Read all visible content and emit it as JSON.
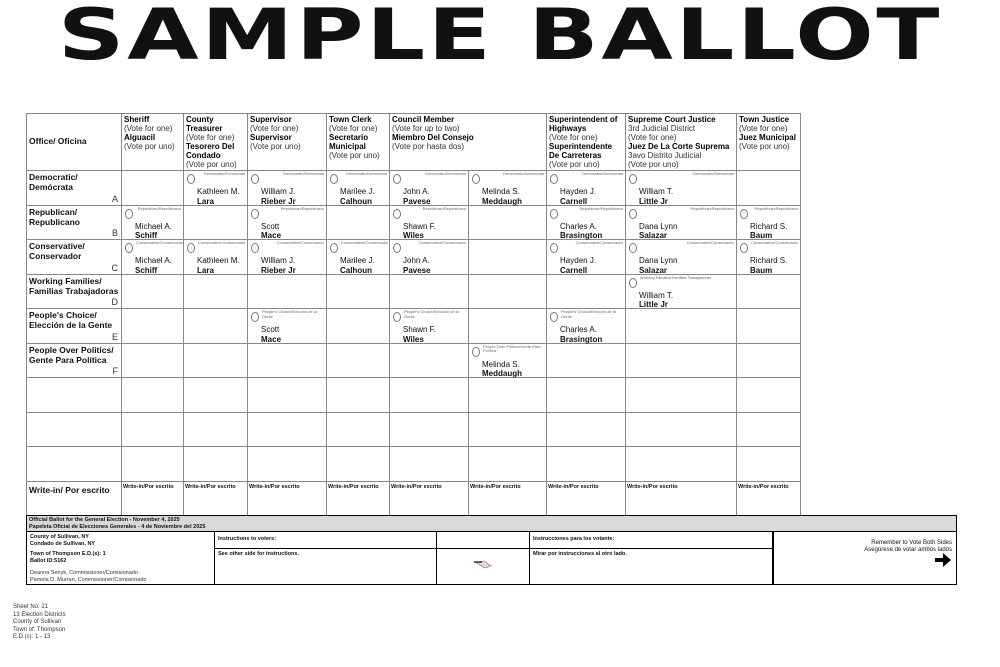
{
  "title": "SAMPLE BALLOT",
  "office_label": "Office/ Oficina",
  "contests": [
    {
      "span": 1,
      "lines": [
        {
          "t": "Sheriff",
          "b": 1
        },
        {
          "t": "(Vote for one)"
        },
        {
          "t": "Alguacil",
          "b": 1
        },
        {
          "t": "(Vote por uno)"
        }
      ]
    },
    {
      "span": 1,
      "lines": [
        {
          "t": "County Treasurer",
          "b": 1
        },
        {
          "t": "(Vote for one)"
        },
        {
          "t": "Tesorero Del Condado",
          "b": 1
        },
        {
          "t": "(Vote por uno)"
        }
      ]
    },
    {
      "span": 1,
      "lines": [
        {
          "t": "Supervisor",
          "b": 1
        },
        {
          "t": "(Vote for one)"
        },
        {
          "t": "Supervisor",
          "b": 1
        },
        {
          "t": "(Vote por uno)"
        }
      ]
    },
    {
      "span": 1,
      "lines": [
        {
          "t": "Town Clerk",
          "b": 1
        },
        {
          "t": "(Vote for one)"
        },
        {
          "t": "Secretario Municipal",
          "b": 1
        },
        {
          "t": "(Vote por uno)"
        }
      ]
    },
    {
      "span": 2,
      "lines": [
        {
          "t": "Council Member",
          "b": 1
        },
        {
          "t": "(Vote for up to two)"
        },
        {
          "t": "Miembro Del Consejo",
          "b": 1
        },
        {
          "t": "(Vote por hasta dos)"
        }
      ]
    },
    {
      "span": 1,
      "lines": [
        {
          "t": "Superintendent of Highways",
          "b": 1
        },
        {
          "t": "(Vote for one)"
        },
        {
          "t": "Superintendente De Carreteras",
          "b": 1
        },
        {
          "t": "(Vote por uno)"
        }
      ]
    },
    {
      "span": 1,
      "lines": [
        {
          "t": "Supreme Court Justice",
          "b": 1
        },
        {
          "t": "3rd Judicial District"
        },
        {
          "t": "(Vote for one)"
        },
        {
          "t": "Juez De La Corte Suprema",
          "b": 1
        },
        {
          "t": "3avo Distrito Judicial"
        },
        {
          "t": "(Vote por uno)"
        }
      ]
    },
    {
      "span": 1,
      "lines": [
        {
          "t": "Town Justice",
          "b": 1
        },
        {
          "t": "(Vote for one)"
        },
        {
          "t": "Juez Municipal",
          "b": 1
        },
        {
          "t": "(Vote por uno)"
        }
      ]
    }
  ],
  "rows": [
    {
      "party": "Democratic/ Demócrata",
      "letter": "A",
      "label": "Democratic/Demócrata",
      "cells": [
        null,
        [
          "Kathleen M.",
          "Lara"
        ],
        [
          "William J.",
          "Rieber Jr"
        ],
        [
          "Marilee J.",
          "Calhoun"
        ],
        [
          "John A.",
          "Pavese"
        ],
        [
          "Melinda S.",
          "Meddaugh"
        ],
        [
          "Hayden J.",
          "Carnell"
        ],
        [
          "William T.",
          "Little Jr"
        ],
        null
      ]
    },
    {
      "party": "Republican/ Republicano",
      "letter": "B",
      "label": "Republican/Republicano",
      "cells": [
        [
          "Michael A.",
          "Schiff"
        ],
        null,
        [
          "Scott",
          "Mace"
        ],
        null,
        [
          "Shawn F.",
          "Wiles"
        ],
        null,
        [
          "Charles A.",
          "Brasington"
        ],
        [
          "Dana Lynn",
          "Salazar"
        ],
        [
          "Richard S.",
          "Baum"
        ]
      ]
    },
    {
      "party": "Conservative/ Conservador",
      "letter": "C",
      "label": "Conservative/Conservador",
      "cells": [
        [
          "Michael A.",
          "Schiff"
        ],
        [
          "Kathleen M.",
          "Lara"
        ],
        [
          "William J.",
          "Rieber Jr"
        ],
        [
          "Marilee J.",
          "Calhoun"
        ],
        [
          "John A.",
          "Pavese"
        ],
        null,
        [
          "Hayden J.",
          "Carnell"
        ],
        [
          "Dana Lynn",
          "Salazar"
        ],
        [
          "Richard S.",
          "Baum"
        ]
      ]
    },
    {
      "party": "Working Families/ Familias Trabajadoras",
      "letter": "D",
      "label": "Working Families/Familias Trabajadoras",
      "cells": [
        null,
        null,
        null,
        null,
        null,
        null,
        null,
        [
          "William T.",
          "Little Jr"
        ],
        null
      ]
    },
    {
      "party": "People's Choice/ Elección de la Gente",
      "letter": "E",
      "label": "People's Choice/Elección de la Gente",
      "cells": [
        null,
        null,
        [
          "Scott",
          "Mace"
        ],
        null,
        [
          "Shawn F.",
          "Wiles"
        ],
        null,
        [
          "Charles A.",
          "Brasington"
        ],
        null,
        null
      ]
    },
    {
      "party": "People Over Politics/ Gente Para Política",
      "letter": "F",
      "label": "People Over Politics/Gente Para Política",
      "cells": [
        null,
        null,
        null,
        null,
        null,
        [
          "Melinda S.",
          "Meddaugh"
        ],
        null,
        null,
        null
      ]
    }
  ],
  "writein": {
    "row_label": "Write-in/ Por escrito",
    "cell_label": "Write-in/Por escrito"
  },
  "footer": {
    "title_en": "Official Ballot for the General Election - November 4, 2025",
    "title_es": "Papeleta Oficial de Elecciones Generales - 4 de Noviembre del 2025",
    "county_en": "County of Sullivan, NY",
    "county_es": "Condado de Sullivan, NY",
    "town": "Town of Thompson E.D.(s): 1",
    "ballot_id": "Ballot ID:5162",
    "commissioner1": "Deanna Senyk, Commissioner/Comisionado",
    "commissioner2": "Pamela D. Murran, Commissioner/Comisionado",
    "instr_en_head": "Instructions to voters:",
    "instr_en_body": "See other side for instructions.",
    "instr_es_head": "Instrucciones para los votante:",
    "instr_es_body": "Mirar por instrucciones al otro lado.",
    "remember_en": "Remember to Vote Both Sides",
    "remember_es": "Asegúrese de votar ambos lados",
    "arrow_icon": "right-arrow"
  },
  "meta": [
    "Sheet No: 21",
    "13 Election Districts",
    "County of Sullivan",
    "Town of: Thompson",
    "E.D.(s): 1 - 13"
  ]
}
